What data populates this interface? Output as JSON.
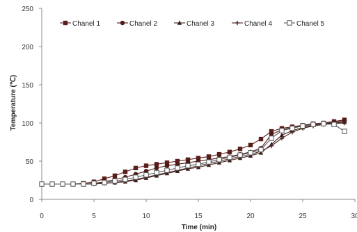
{
  "chart_data": {
    "type": "line",
    "xlabel": "Time (min)",
    "ylabel": "Temperature (℃)",
    "xlim": [
      0,
      30
    ],
    "ylim": [
      0,
      250
    ],
    "xticks": [
      "0",
      "5",
      "10",
      "15",
      "20",
      "25",
      "30"
    ],
    "yticks": [
      "0",
      "50",
      "100",
      "150",
      "200",
      "250"
    ],
    "grid": false,
    "legend_position": "top",
    "x": [
      0,
      1,
      2,
      3,
      4,
      5,
      6,
      7,
      8,
      9,
      10,
      11,
      12,
      13,
      14,
      15,
      16,
      17,
      18,
      19,
      20,
      21,
      22,
      23,
      24,
      25,
      26,
      27,
      28,
      29
    ],
    "series": [
      {
        "name": "Chanel 1",
        "marker": "square",
        "color": "#5a1e1a",
        "values": [
          20,
          20,
          20,
          20,
          21,
          23,
          27,
          31,
          36,
          41,
          44,
          46,
          48,
          50,
          52,
          54,
          56,
          59,
          62,
          66,
          71,
          79,
          89,
          93,
          95,
          97,
          99,
          100,
          102,
          104
        ]
      },
      {
        "name": "Chanel 2",
        "marker": "circle",
        "color": "#4a1a16",
        "values": [
          20,
          20,
          20,
          20,
          20,
          21,
          23,
          26,
          29,
          33,
          37,
          41,
          44,
          46,
          48,
          50,
          52,
          54,
          56,
          59,
          62,
          67,
          85,
          91,
          94,
          96,
          98,
          99,
          101,
          103
        ]
      },
      {
        "name": "Chanel 3",
        "marker": "triangle",
        "color": "#3a1e1a",
        "values": [
          20,
          20,
          20,
          20,
          20,
          20,
          21,
          22,
          23,
          25,
          28,
          31,
          34,
          37,
          40,
          42,
          45,
          48,
          51,
          54,
          57,
          61,
          72,
          84,
          90,
          94,
          97,
          99,
          100,
          101
        ]
      },
      {
        "name": "Chanel 4",
        "marker": "cross",
        "color": "#4a2420",
        "values": [
          20,
          20,
          20,
          20,
          20,
          20,
          21,
          22,
          24,
          26,
          29,
          32,
          35,
          38,
          41,
          44,
          47,
          50,
          53,
          56,
          59,
          63,
          70,
          80,
          88,
          93,
          96,
          98,
          99,
          100
        ]
      },
      {
        "name": "Chanel 5",
        "marker": "open-square",
        "color": "#555555",
        "values": [
          20,
          20,
          20,
          20,
          20,
          21,
          22,
          24,
          26,
          29,
          32,
          35,
          38,
          41,
          44,
          46,
          49,
          52,
          55,
          58,
          61,
          65,
          80,
          90,
          93,
          96,
          98,
          99,
          98,
          89
        ]
      }
    ]
  }
}
